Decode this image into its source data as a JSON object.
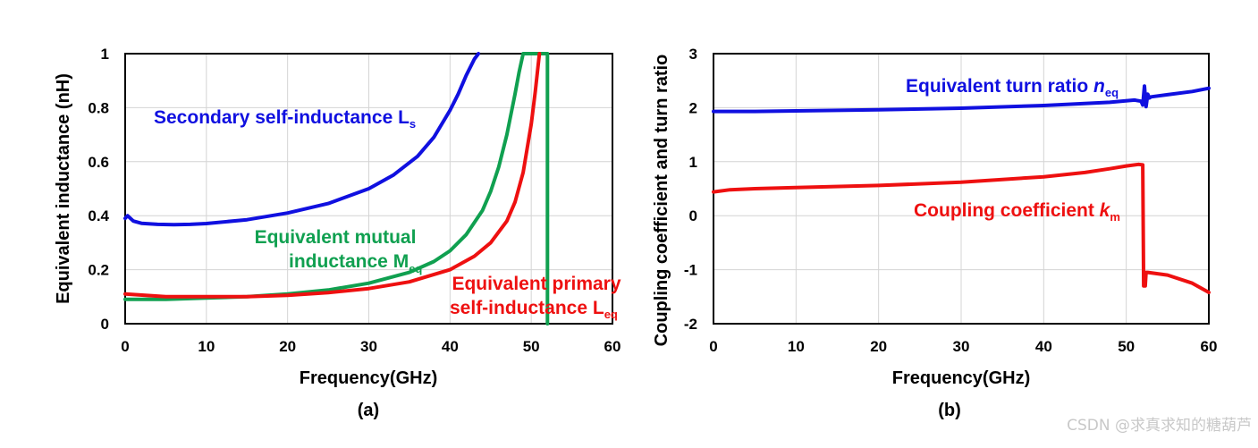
{
  "chart_data": [
    {
      "id": "a",
      "type": "line",
      "caption": "(a)",
      "xlabel": "Frequency(GHz)",
      "ylabel": "Equivalent inductance (nH)",
      "xlim": [
        0,
        60
      ],
      "ylim": [
        0,
        1
      ],
      "xticks": [
        0,
        10,
        20,
        30,
        40,
        50,
        60
      ],
      "yticks": [
        0,
        0.2,
        0.4,
        0.6,
        0.8,
        1
      ],
      "ytick_labels": [
        "0",
        "0.2",
        "0.4",
        "0.6",
        "0.8",
        "1"
      ],
      "grid": true,
      "series": [
        {
          "name": "Secondary self-inductance Ls",
          "color": "#1010e0",
          "x": [
            0,
            0.3,
            1,
            2,
            4,
            6,
            8,
            10,
            15,
            20,
            25,
            30,
            33,
            36,
            38,
            40,
            41,
            42,
            43,
            43.5
          ],
          "y": [
            0.39,
            0.4,
            0.38,
            0.372,
            0.368,
            0.367,
            0.368,
            0.371,
            0.385,
            0.41,
            0.445,
            0.5,
            0.55,
            0.62,
            0.69,
            0.79,
            0.85,
            0.92,
            0.98,
            1.0
          ]
        },
        {
          "name": "Equivalent mutual inductance Meq",
          "color": "#10a050",
          "x": [
            0,
            5,
            10,
            15,
            20,
            25,
            30,
            35,
            38,
            40,
            42,
            44,
            45,
            46,
            47,
            48,
            48.5,
            49,
            52,
            52,
            52
          ],
          "y": [
            0.09,
            0.09,
            0.095,
            0.1,
            0.11,
            0.125,
            0.15,
            0.19,
            0.23,
            0.27,
            0.33,
            0.42,
            0.49,
            0.58,
            0.7,
            0.85,
            0.93,
            1.0,
            1.0,
            0.0,
            1.0
          ]
        },
        {
          "name": "Equivalent primary self-inductance Leq",
          "color": "#ee1010",
          "x": [
            0,
            5,
            10,
            15,
            20,
            25,
            30,
            35,
            40,
            43,
            45,
            47,
            48,
            49,
            50,
            50.5,
            51
          ],
          "y": [
            0.11,
            0.1,
            0.1,
            0.1,
            0.105,
            0.115,
            0.13,
            0.155,
            0.2,
            0.25,
            0.3,
            0.38,
            0.45,
            0.56,
            0.74,
            0.86,
            1.0
          ]
        }
      ],
      "annotations": [
        {
          "text": "Secondary self-inductance L",
          "sub": "s",
          "color": "#1010e0"
        },
        {
          "text": "Equivalent mutual",
          "color": "#10a050"
        },
        {
          "text": "inductance M",
          "sub": "eq",
          "color": "#10a050"
        },
        {
          "text": "Equivalent primary",
          "color": "#ee1010"
        },
        {
          "text": "self-inductance L",
          "sub": "eq",
          "color": "#ee1010"
        }
      ]
    },
    {
      "id": "b",
      "type": "line",
      "caption": "(b)",
      "xlabel": "Frequency(GHz)",
      "ylabel": "Coupling coefficient and turn ratio",
      "xlim": [
        0,
        60
      ],
      "ylim": [
        -2,
        3
      ],
      "xticks": [
        0,
        10,
        20,
        30,
        40,
        50,
        60
      ],
      "yticks": [
        -2,
        -1,
        0,
        1,
        2,
        3
      ],
      "ytick_labels": [
        "-2",
        "-1",
        "0",
        "1",
        "2",
        "3"
      ],
      "grid": true,
      "series": [
        {
          "name": "Equivalent turn ratio neq",
          "color": "#1010e0",
          "x": [
            0,
            5,
            10,
            20,
            30,
            40,
            48,
            51,
            51.8,
            52,
            52.2,
            52.4,
            52.6,
            52.8,
            53,
            55,
            58,
            60
          ],
          "y": [
            1.93,
            1.93,
            1.94,
            1.96,
            1.99,
            2.04,
            2.1,
            2.14,
            2.12,
            2.05,
            2.4,
            2.02,
            2.25,
            2.18,
            2.2,
            2.24,
            2.3,
            2.36
          ]
        },
        {
          "name": "Coupling coefficient km",
          "color": "#ee1010",
          "x": [
            0,
            2,
            5,
            10,
            20,
            30,
            40,
            45,
            48,
            50,
            51.5,
            52,
            52.1,
            52.3,
            52.4,
            52.6,
            55,
            58,
            60
          ],
          "y": [
            0.44,
            0.48,
            0.5,
            0.52,
            0.56,
            0.62,
            0.72,
            0.8,
            0.87,
            0.92,
            0.95,
            0.94,
            -1.3,
            -1.3,
            -1.05,
            -1.05,
            -1.1,
            -1.25,
            -1.42
          ]
        }
      ],
      "annotations": [
        {
          "text": "Equivalent turn ratio ",
          "italic": "n",
          "sub": "eq",
          "color": "#1010e0"
        },
        {
          "text": "Coupling coefficient ",
          "italic": "k",
          "sub": "m",
          "color": "#ee1010"
        }
      ]
    }
  ],
  "watermark": "CSDN @求真求知的糖葫芦"
}
